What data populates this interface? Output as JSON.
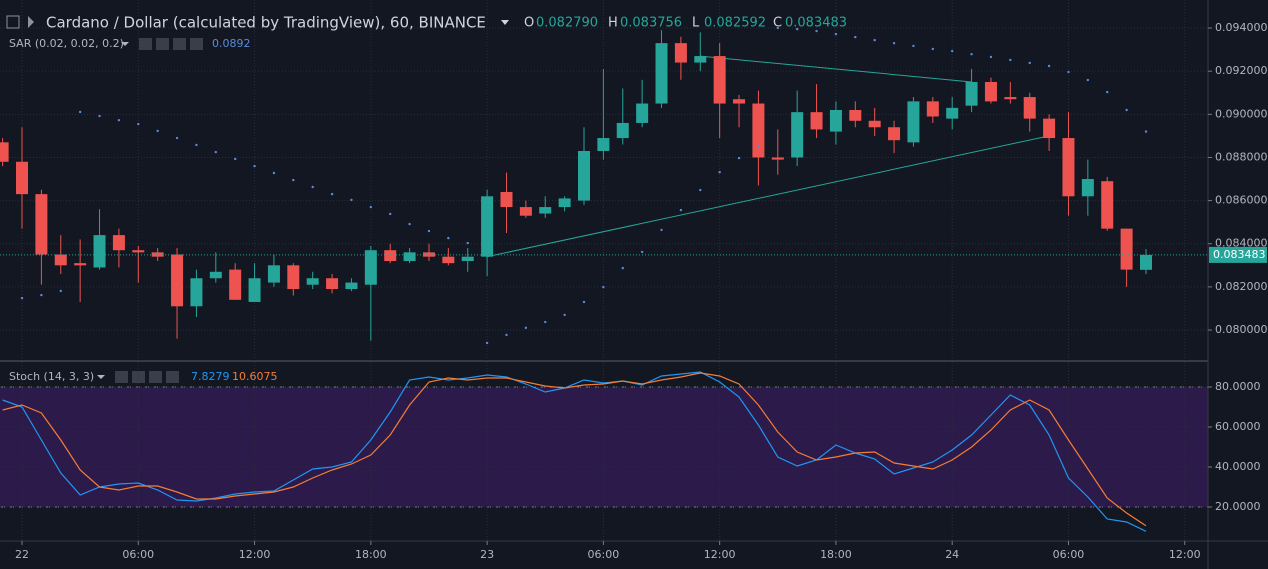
{
  "chart_data": [
    {
      "type": "candlestick",
      "title": "Cardano / Dollar (calculated by TradingView), 60, BINANCE",
      "header_fields": [
        {
          "name": "O",
          "label": "0.082790"
        },
        {
          "name": "H",
          "label": "0.083756"
        },
        {
          "name": "L",
          "label": "0.082592"
        },
        {
          "name": "C",
          "label": "0.083483"
        }
      ],
      "last_price_label": "0.083483",
      "indicator": "SAR (0.02, 0.02, 0.2)",
      "up_color": "#26a69a",
      "down_color": "#ef5350",
      "sar_color": "#5b8bd9",
      "x": [
        -1,
        0,
        1,
        2,
        3,
        4,
        5,
        6,
        7,
        8,
        9,
        10,
        11,
        12,
        13,
        14,
        15,
        16,
        17,
        18,
        19,
        20,
        21,
        22,
        23,
        24,
        25,
        26,
        27,
        28,
        29,
        30,
        31,
        32,
        33,
        34,
        35,
        36,
        37,
        38,
        39,
        40,
        41,
        42,
        43,
        44,
        45,
        46,
        47,
        48,
        49,
        50,
        51,
        52,
        53,
        54,
        55,
        56,
        57,
        58
      ],
      "open": [
        0.0887,
        0.0878,
        0.0863,
        0.0835,
        0.0831,
        0.0829,
        0.0844,
        0.0837,
        0.0836,
        0.0835,
        0.0811,
        0.0824,
        0.0828,
        0.0813,
        0.0822,
        0.083,
        0.0821,
        0.0824,
        0.0819,
        0.0821,
        0.0837,
        0.0832,
        0.0836,
        0.0834,
        0.0832,
        0.0834,
        0.0864,
        0.0857,
        0.0854,
        0.0857,
        0.086,
        0.0883,
        0.0889,
        0.0896,
        0.0905,
        0.0933,
        0.0924,
        0.0927,
        0.0907,
        0.0905,
        0.088,
        0.088,
        0.0901,
        0.0892,
        0.0902,
        0.0897,
        0.0894,
        0.0887,
        0.0906,
        0.0898,
        0.0904,
        0.0915,
        0.0908,
        0.0908,
        0.0898,
        0.0889,
        0.0862,
        0.0869,
        0.0847,
        0.08279
      ],
      "high": [
        0.0889,
        0.0894,
        0.0865,
        0.0844,
        0.0842,
        0.0856,
        0.0847,
        0.0839,
        0.0838,
        0.0838,
        0.0828,
        0.0836,
        0.0831,
        0.0831,
        0.0835,
        0.0831,
        0.0827,
        0.0826,
        0.0824,
        0.0839,
        0.084,
        0.0838,
        0.084,
        0.0838,
        0.0838,
        0.0865,
        0.0873,
        0.086,
        0.0862,
        0.0862,
        0.0894,
        0.0921,
        0.0912,
        0.0916,
        0.0939,
        0.0936,
        0.0938,
        0.0933,
        0.0909,
        0.0911,
        0.0893,
        0.0911,
        0.0914,
        0.0906,
        0.0906,
        0.0903,
        0.0897,
        0.0908,
        0.0908,
        0.0908,
        0.0921,
        0.0917,
        0.0915,
        0.091,
        0.09,
        0.0901,
        0.0879,
        0.0871,
        0.0847,
        0.083756
      ],
      "low": [
        0.0876,
        0.0847,
        0.0821,
        0.0826,
        0.0813,
        0.0828,
        0.0829,
        0.0822,
        0.0832,
        0.0796,
        0.0806,
        0.0822,
        0.0814,
        0.0813,
        0.082,
        0.0816,
        0.0819,
        0.0817,
        0.0818,
        0.0795,
        0.0831,
        0.0831,
        0.0832,
        0.083,
        0.0827,
        0.0825,
        0.0845,
        0.0852,
        0.0852,
        0.0855,
        0.0858,
        0.0879,
        0.0886,
        0.0894,
        0.0903,
        0.0916,
        0.092,
        0.0889,
        0.0894,
        0.0867,
        0.0872,
        0.0876,
        0.0889,
        0.0886,
        0.0894,
        0.089,
        0.0882,
        0.0885,
        0.0896,
        0.0893,
        0.0901,
        0.0905,
        0.0905,
        0.0892,
        0.0883,
        0.0853,
        0.0853,
        0.0846,
        0.082,
        0.082592
      ],
      "close": [
        0.0878,
        0.0863,
        0.0835,
        0.083,
        0.083,
        0.0844,
        0.0837,
        0.0836,
        0.0834,
        0.0811,
        0.0824,
        0.0827,
        0.0814,
        0.0824,
        0.083,
        0.0819,
        0.0824,
        0.0819,
        0.0822,
        0.0837,
        0.0832,
        0.0836,
        0.0834,
        0.0831,
        0.0834,
        0.0862,
        0.0857,
        0.0853,
        0.0857,
        0.0861,
        0.0883,
        0.0889,
        0.0896,
        0.0905,
        0.0933,
        0.0924,
        0.0927,
        0.0905,
        0.0905,
        0.088,
        0.0879,
        0.0901,
        0.0893,
        0.0902,
        0.0897,
        0.0894,
        0.0888,
        0.0906,
        0.0899,
        0.0903,
        0.0915,
        0.0906,
        0.0907,
        0.0898,
        0.0889,
        0.0862,
        0.087,
        0.0847,
        0.0828,
        0.083483
      ],
      "sar": [
        null,
        0.08148,
        0.08162,
        0.08181,
        0.09011,
        0.08992,
        0.08973,
        0.08955,
        0.08923,
        0.0889,
        0.08858,
        0.08825,
        0.08793,
        0.0876,
        0.08728,
        0.08695,
        0.08663,
        0.0863,
        0.08603,
        0.0857,
        0.08538,
        0.08491,
        0.08459,
        0.08426,
        0.08403,
        0.0794,
        0.07977,
        0.0801,
        0.08037,
        0.0807,
        0.0813,
        0.08199,
        0.08287,
        0.08362,
        0.08464,
        0.08556,
        0.08649,
        0.08732,
        0.08797,
        0.08848,
        0.094,
        0.09395,
        0.09386,
        0.09372,
        0.09358,
        0.09344,
        0.0933,
        0.09317,
        0.09303,
        0.09293,
        0.09279,
        0.09266,
        0.09252,
        0.09238,
        0.09224,
        0.09196,
        0.09159,
        0.09103,
        0.0902,
        0.0892
      ],
      "trendlines": [
        {
          "x": [
            24,
            53
          ],
          "y": [
            0.0834,
            0.089
          ]
        },
        {
          "x": [
            35,
            49
          ],
          "y": [
            0.0927,
            0.0915
          ]
        }
      ],
      "trend_color": "#26a69a",
      "xlim": [
        -1.136,
        61.2
      ],
      "ylim": [
        0.07861,
        0.0953
      ],
      "yticks": [
        {
          "value": 0.08,
          "label": "0.080000"
        },
        {
          "value": 0.082,
          "label": "0.082000"
        },
        {
          "value": 0.084,
          "label": "0.084000"
        },
        {
          "value": 0.086,
          "label": "0.086000"
        },
        {
          "value": 0.088,
          "label": "0.088000"
        },
        {
          "value": 0.09,
          "label": "0.090000"
        },
        {
          "value": 0.092,
          "label": "0.092000"
        },
        {
          "value": 0.094,
          "label": "0.094000"
        }
      ],
      "xticks": [
        {
          "value": 0,
          "label": "22"
        },
        {
          "value": 6,
          "label": "06:00"
        },
        {
          "value": 12,
          "label": "12:00"
        },
        {
          "value": 18,
          "label": "18:00"
        },
        {
          "value": 24,
          "label": "23"
        },
        {
          "value": 30,
          "label": "06:00"
        },
        {
          "value": 36,
          "label": "12:00"
        },
        {
          "value": 42,
          "label": "18:00"
        },
        {
          "value": 48,
          "label": "24"
        },
        {
          "value": 54,
          "label": "06:00"
        },
        {
          "value": 60,
          "label": "12:00"
        }
      ],
      "grid": true
    },
    {
      "type": "line",
      "indicator": "Stoch (14, 3, 3)",
      "x": [
        -1,
        0,
        1,
        2,
        3,
        4,
        5,
        6,
        7,
        8,
        9,
        10,
        11,
        12,
        13,
        14,
        15,
        16,
        17,
        18,
        19,
        20,
        21,
        22,
        23,
        24,
        25,
        26,
        27,
        28,
        29,
        30,
        31,
        32,
        33,
        34,
        35,
        36,
        37,
        38,
        39,
        40,
        41,
        42,
        43,
        44,
        45,
        46,
        47,
        48,
        49,
        50,
        51,
        52,
        53,
        54,
        55,
        56,
        57,
        58
      ],
      "series": [
        {
          "color": "#2196f3",
          "values": [
            73.5,
            70,
            53.5,
            37,
            26,
            30,
            31.5,
            32,
            28.5,
            23.5,
            23,
            24.5,
            26.5,
            27.5,
            28,
            33.5,
            39,
            40,
            42.5,
            53.5,
            67.5,
            83.5,
            85,
            83.5,
            84.5,
            86,
            85,
            81.5,
            77.5,
            79.5,
            83.5,
            82,
            83,
            81,
            85.5,
            86.5,
            87.5,
            82.5,
            75,
            61,
            45,
            40.5,
            43.5,
            51,
            47,
            44,
            36.5,
            39.5,
            42.5,
            48.5,
            56,
            66,
            76,
            71,
            56,
            34.5,
            25,
            14,
            12.5,
            7.8279
          ]
        },
        {
          "color": "#f57c35",
          "values": [
            68.5,
            71,
            67,
            53.5,
            38.5,
            30,
            28.5,
            30.5,
            30.5,
            27.5,
            24,
            24,
            25.5,
            26.5,
            27.5,
            30,
            34.5,
            38.5,
            41.5,
            46,
            56,
            71,
            82.5,
            84.5,
            83.5,
            84.5,
            84.5,
            82.5,
            80.5,
            79.5,
            81,
            81.5,
            83,
            81.5,
            83.5,
            85,
            87,
            85.5,
            81.5,
            71,
            57.5,
            47.5,
            43.5,
            45,
            47,
            47.5,
            42,
            40.5,
            39,
            43.5,
            50,
            58.5,
            68.5,
            73.5,
            68.5,
            53.5,
            39,
            24.5,
            17,
            10.6075
          ]
        }
      ],
      "band": [
        20,
        80
      ],
      "band_color": "#2b1a4a",
      "xlim": [
        -1.136,
        61.2
      ],
      "ylim": [
        3.5,
        92.5
      ],
      "yticks": [
        {
          "value": 20,
          "label": "20.0000"
        },
        {
          "value": 40,
          "label": "40.0000"
        },
        {
          "value": 60,
          "label": "60.0000"
        },
        {
          "value": 80,
          "label": "80.0000"
        }
      ],
      "grid": true
    }
  ]
}
